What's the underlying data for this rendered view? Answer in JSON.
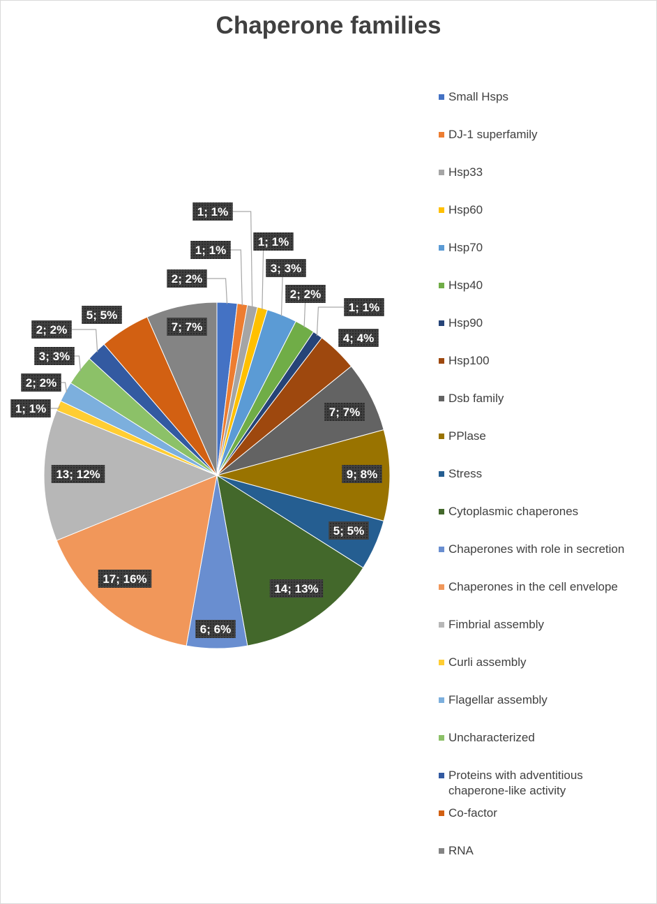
{
  "chart_data": {
    "type": "pie",
    "title": "Chaperone families",
    "legend_position": "right",
    "start_angle": "12 o'clock, clockwise",
    "label_format": "value; percent",
    "slices": [
      {
        "name": "Small Hsps",
        "value": 2,
        "label": "2; 2%",
        "color": "#4472C4"
      },
      {
        "name": "DJ-1 superfamily",
        "value": 1,
        "label": "1; 1%",
        "color": "#ED7D31"
      },
      {
        "name": "Hsp33",
        "value": 1,
        "label": "1; 1%",
        "color": "#A5A5A5"
      },
      {
        "name": "Hsp60",
        "value": 1,
        "label": "1; 1%",
        "color": "#FFC000"
      },
      {
        "name": "Hsp70",
        "value": 3,
        "label": "3; 3%",
        "color": "#5B9BD5"
      },
      {
        "name": "Hsp40",
        "value": 2,
        "label": "2; 2%",
        "color": "#70AD47"
      },
      {
        "name": "Hsp90",
        "value": 1,
        "label": "1; 1%",
        "color": "#264478"
      },
      {
        "name": "Hsp100",
        "value": 4,
        "label": "4; 4%",
        "color": "#9E480E"
      },
      {
        "name": "Dsb family",
        "value": 7,
        "label": "7; 7%",
        "color": "#636363"
      },
      {
        "name": "PPlase",
        "value": 9,
        "label": "9; 8%",
        "color": "#997300"
      },
      {
        "name": "Stress",
        "value": 5,
        "label": "5; 5%",
        "color": "#255E91"
      },
      {
        "name": "Cytoplasmic chaperones",
        "value": 14,
        "label": "14; 13%",
        "color": "#43682B"
      },
      {
        "name": "Chaperones with role in secretion",
        "value": 6,
        "label": "6; 6%",
        "color": "#698ED0"
      },
      {
        "name": "Chaperones in the cell envelope",
        "value": 17,
        "label": "17; 16%",
        "color": "#F1975A"
      },
      {
        "name": "Fimbrial assembly",
        "value": 13,
        "label": "13; 12%",
        "color": "#B7B7B7"
      },
      {
        "name": "Curli assembly",
        "value": 1,
        "label": "1; 1%",
        "color": "#FFCD33"
      },
      {
        "name": "Flagellar assembly",
        "value": 2,
        "label": "2; 2%",
        "color": "#7CAFDD"
      },
      {
        "name": "Uncharacterized",
        "value": 3,
        "label": "3; 3%",
        "color": "#8CC168"
      },
      {
        "name": "Proteins with adventitious\nchaperone-like activity",
        "value": 2,
        "label": "2; 2%",
        "color": "#335AA1"
      },
      {
        "name": "Co-factor",
        "value": 5,
        "label": "5; 5%",
        "color": "#D26012"
      },
      {
        "name": "RNA",
        "value": 7,
        "label": "7; 7%",
        "color": "#848484"
      }
    ]
  }
}
